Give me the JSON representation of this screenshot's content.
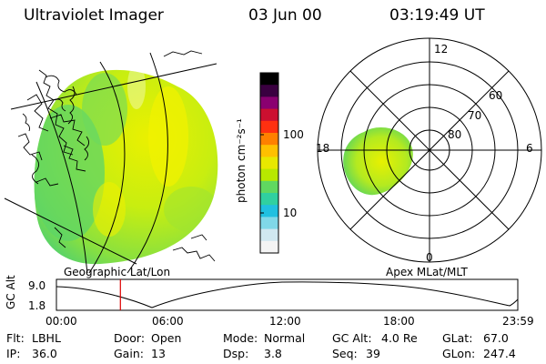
{
  "header": {
    "instrument": "Ultraviolet Imager",
    "date": "03 Jun 00",
    "time": "03:19:49 UT"
  },
  "colorbar": {
    "label": "photon cm⁻²s⁻¹",
    "ticks": [
      "100",
      "10"
    ],
    "colors": [
      "#000000",
      "#3a0040",
      "#8a0070",
      "#cc1030",
      "#ff3010",
      "#ff8000",
      "#ffc000",
      "#e8e800",
      "#b8e800",
      "#60d860",
      "#30d0a0",
      "#20c0e0",
      "#80d8e8",
      "#d0e8f0",
      "#f4f4f4"
    ]
  },
  "left_map": {
    "projection_label": "Geographic Lat/Lon"
  },
  "polar": {
    "label": "Apex MLat/MLT",
    "mlt_labels": {
      "top": "12",
      "bottom": "0",
      "left": "18",
      "right": "6"
    },
    "lat_labels": [
      "60",
      "70",
      "80"
    ]
  },
  "altitude_plot": {
    "ylabel": "GC Alt",
    "y_ticks": [
      "9.0",
      "1.8"
    ],
    "x_ticks": [
      "00:00",
      "06:00",
      "12:00",
      "18:00",
      "23:59"
    ],
    "marker_color": "#dd0000",
    "marker_time_hours": 3.33
  },
  "info": {
    "flt_label": "Flt:",
    "flt_value": "LBHL",
    "door_label": "Door:",
    "door_value": "Open",
    "mode_label": "Mode:",
    "mode_value": "Normal",
    "gcalt_label": "GC Alt:",
    "gcalt_value": "4.0 Re",
    "glat_label": "GLat:",
    "glat_value": "67.0",
    "ip_label": "IP:",
    "ip_value": "36.0",
    "gain_label": "Gain:",
    "gain_value": "13",
    "dsp_label": "Dsp:",
    "dsp_value": "3.8",
    "seq_label": "Seq:",
    "seq_value": "39",
    "glon_label": "GLon:",
    "glon_value": "247.4"
  }
}
